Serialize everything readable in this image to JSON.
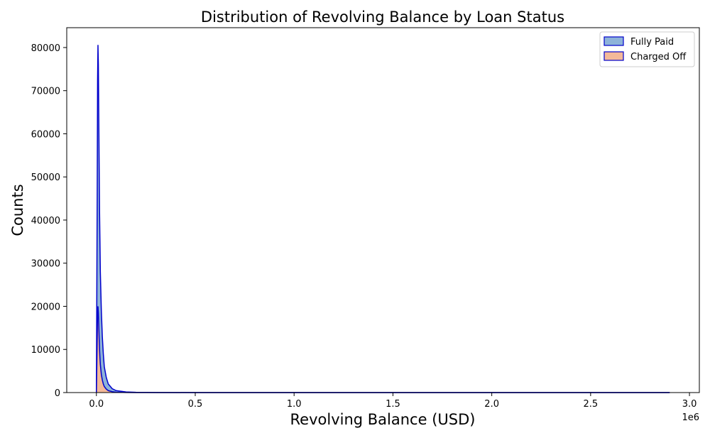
{
  "chart_data": {
    "type": "area",
    "title": "Distribution of Revolving Balance by Loan Status",
    "xlabel": "Revolving Balance (USD)",
    "ylabel": "Counts",
    "x_offset_label": "1e6",
    "xlim": [
      -0.15,
      3.05
    ],
    "ylim": [
      0,
      84600
    ],
    "x_ticks": [
      0.0,
      0.5,
      1.0,
      1.5,
      2.0,
      2.5,
      3.0
    ],
    "x_tick_labels": [
      "0.0",
      "0.5",
      "1.0",
      "1.5",
      "2.0",
      "2.5",
      "3.0"
    ],
    "y_ticks": [
      0,
      10000,
      20000,
      30000,
      40000,
      50000,
      60000,
      70000,
      80000
    ],
    "y_tick_labels": [
      "0",
      "10000",
      "20000",
      "30000",
      "40000",
      "50000",
      "60000",
      "70000",
      "80000"
    ],
    "grid": false,
    "legend_position": "top-right",
    "edge_color": "#0000cc",
    "series": [
      {
        "name": "Fully Paid",
        "fill": "#8eb3d9",
        "x": [
          0.0,
          0.004,
          0.006,
          0.008,
          0.01,
          0.012,
          0.014,
          0.016,
          0.018,
          0.02,
          0.025,
          0.03,
          0.035,
          0.04,
          0.05,
          0.06,
          0.08,
          0.1,
          0.15,
          0.2,
          0.3,
          0.5,
          1.0,
          2.0,
          2.9
        ],
        "y": [
          0,
          45000,
          72500,
          80600,
          76000,
          64000,
          53000,
          42000,
          35000,
          28000,
          19000,
          13000,
          9000,
          6000,
          3500,
          2000,
          900,
          450,
          150,
          60,
          20,
          5,
          2,
          1,
          0
        ]
      },
      {
        "name": "Charged Off",
        "fill": "#f4b999",
        "x": [
          0.0,
          0.004,
          0.006,
          0.008,
          0.01,
          0.012,
          0.014,
          0.016,
          0.018,
          0.02,
          0.025,
          0.03,
          0.035,
          0.04,
          0.05,
          0.06,
          0.08,
          0.1,
          0.15,
          0.2,
          0.3,
          0.5,
          1.0,
          2.0,
          2.9
        ],
        "y": [
          0,
          12000,
          19500,
          20000,
          18500,
          15500,
          12500,
          10000,
          8000,
          6500,
          4200,
          2900,
          2000,
          1400,
          800,
          450,
          200,
          90,
          30,
          10,
          4,
          1,
          0,
          0,
          0
        ]
      }
    ]
  }
}
